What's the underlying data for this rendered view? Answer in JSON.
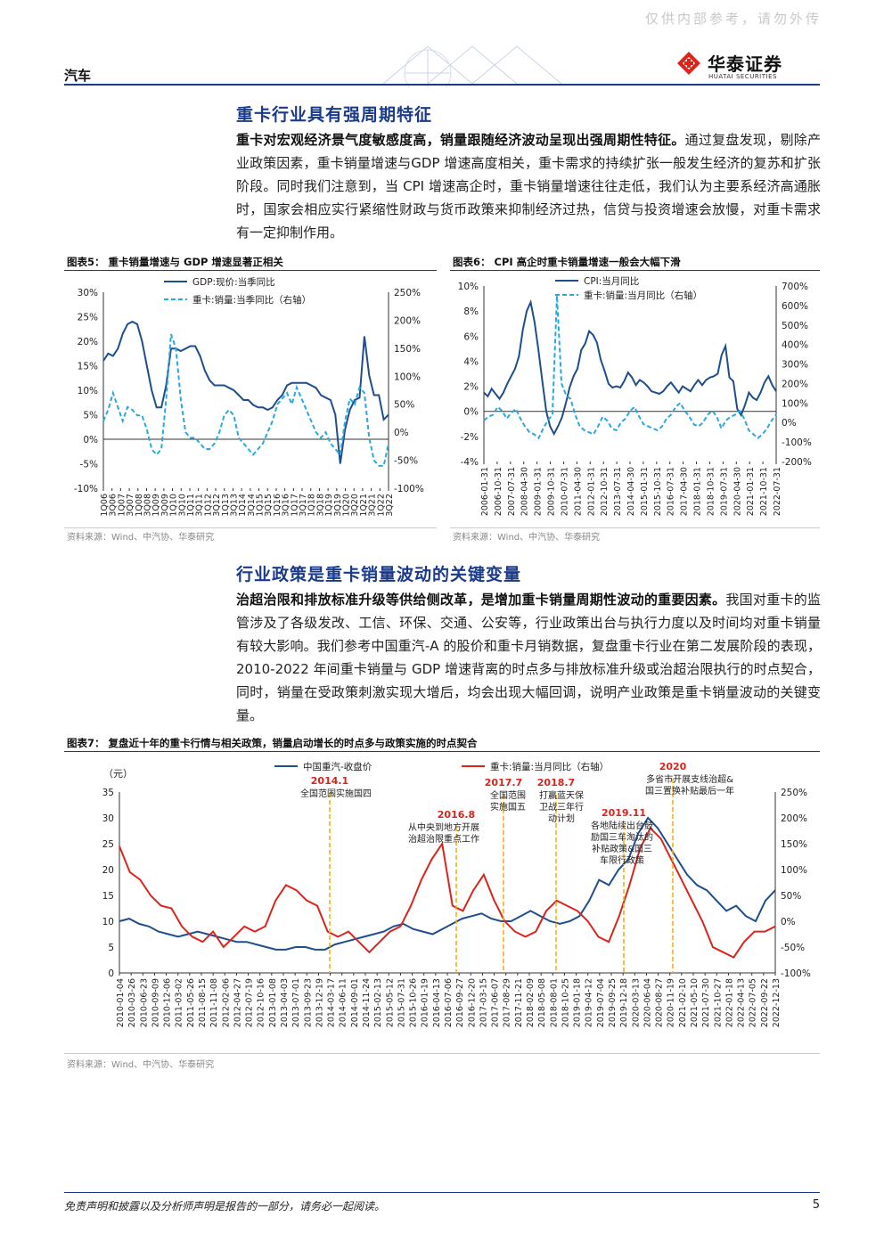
{
  "header": {
    "watermark": "仅供内部参考，请勿外传",
    "section_tag": "汽车",
    "logo_cn": "华泰证券",
    "logo_en": "HUATAI SECURITIES",
    "brand_color": "#d9251c",
    "accent_color": "#1a3a8a"
  },
  "section1": {
    "title": "重卡行业具有强周期特征",
    "lead": "重卡对宏观经济景气度敏感度高，销量跟随经济波动呈现出强周期性特征。",
    "body": "通过复盘发现，剔除产业政策因素，重卡销量增速与GDP 增速高度相关，重卡需求的持续扩张一般发生经济的复苏和扩张阶段。同时我们注意到，当 CPI 增速高企时，重卡销量增速往往走低，我们认为主要系经济高通胀时，国家会相应实行紧缩性财政与货币政策来抑制经济过热，信贷与投资增速会放慢，对重卡需求有一定抑制作用。"
  },
  "fig5": {
    "title": "图表5：  重卡销量增速与 GDP 增速显著正相关",
    "source": "资料来源：Wind、中汽协、华泰研究",
    "chart_data": {
      "type": "line",
      "legend": [
        "GDP:现价:当季同比",
        "重卡:销量:当季同比（右轴）"
      ],
      "y_left_ticks": [
        "30%",
        "25%",
        "20%",
        "15%",
        "10%",
        "5%",
        "0%",
        "-5%",
        "-10%"
      ],
      "y_right_ticks": [
        "250%",
        "200%",
        "150%",
        "100%",
        "50%",
        "0%",
        "-50%",
        "-100%"
      ],
      "x_ticks": [
        "1Q06",
        "3Q06",
        "1Q07",
        "3Q07",
        "1Q08",
        "3Q08",
        "1Q09",
        "3Q09",
        "1Q10",
        "3Q10",
        "1Q11",
        "3Q11",
        "1Q12",
        "3Q12",
        "1Q13",
        "3Q13",
        "1Q14",
        "3Q14",
        "1Q15",
        "3Q15",
        "1Q16",
        "3Q16",
        "1Q17",
        "3Q17",
        "1Q18",
        "3Q18",
        "1Q19",
        "3Q19",
        "1Q20",
        "3Q20",
        "1Q21",
        "3Q21",
        "1Q22",
        "3Q22"
      ],
      "gdp": [
        16,
        17.5,
        17,
        18.5,
        21.5,
        23.5,
        24,
        23.5,
        20,
        15,
        10,
        6.5,
        6.5,
        11,
        18.5,
        18.5,
        18,
        18.5,
        19,
        19,
        17,
        14,
        12,
        11,
        11,
        11,
        10.5,
        10,
        9,
        8,
        8,
        7,
        6.5,
        6.5,
        6,
        6.5,
        8,
        9,
        11,
        11.5,
        11.5,
        11.5,
        11.5,
        11,
        10.5,
        9,
        8.5,
        8,
        5,
        -5,
        2,
        6,
        8,
        8.5,
        21,
        13,
        9,
        9,
        4,
        5
      ],
      "truck": [
        20,
        40,
        70,
        45,
        20,
        45,
        40,
        30,
        30,
        5,
        -30,
        -40,
        -30,
        60,
        175,
        150,
        60,
        0,
        -10,
        -10,
        -20,
        -30,
        -30,
        -20,
        0,
        30,
        40,
        30,
        -10,
        -20,
        -30,
        -40,
        -30,
        -20,
        0,
        20,
        50,
        60,
        70,
        50,
        80,
        60,
        40,
        20,
        0,
        -10,
        0,
        -20,
        -30,
        -40,
        20,
        60,
        50,
        80,
        70,
        -10,
        -50,
        -60,
        -60,
        -20
      ]
    }
  },
  "fig6": {
    "title": "图表6：  CPI 高企时重卡销量增速一般会大幅下滑",
    "source": "资料来源：Wind、中汽协、华泰研究",
    "chart_data": {
      "type": "line",
      "legend": [
        "CPI:当月同比",
        "重卡:销量:当月同比（右轴）"
      ],
      "y_left_ticks": [
        "10%",
        "8%",
        "6%",
        "4%",
        "2%",
        "0%",
        "-2%",
        "-4%"
      ],
      "y_right_ticks": [
        "700%",
        "600%",
        "500%",
        "400%",
        "300%",
        "200%",
        "100%",
        "0%",
        "-100%",
        "-200%"
      ],
      "x_ticks": [
        "2006-01-31",
        "2006-10-31",
        "2007-07-31",
        "2008-04-30",
        "2009-01-31",
        "2009-10-31",
        "2010-07-31",
        "2011-04-30",
        "2012-01-31",
        "2012-10-31",
        "2013-07-31",
        "2014-04-30",
        "2015-01-31",
        "2015-10-31",
        "2016-07-31",
        "2017-04-30",
        "2018-01-31",
        "2018-10-31",
        "2019-07-31",
        "2020-04-30",
        "2021-01-31",
        "2021-10-31",
        "2022-07-31"
      ],
      "cpi": [
        1.5,
        1.2,
        1.8,
        1.4,
        1.0,
        1.5,
        2.2,
        2.8,
        3.4,
        4.4,
        6.5,
        8.0,
        8.7,
        7.1,
        4.9,
        2.4,
        0.0,
        -1.2,
        -1.8,
        -1.2,
        -0.5,
        0.6,
        1.9,
        2.8,
        3.4,
        4.9,
        5.4,
        6.4,
        6.1,
        5.5,
        4.1,
        3.2,
        2.2,
        1.9,
        2.0,
        1.9,
        2.4,
        3.1,
        2.7,
        2.1,
        2.5,
        2.3,
        2.0,
        1.6,
        1.5,
        1.4,
        1.6,
        2.0,
        2.3,
        1.9,
        1.5,
        2.0,
        1.8,
        1.6,
        2.1,
        2.5,
        2.1,
        2.5,
        2.7,
        2.8,
        3.0,
        4.5,
        5.2,
        2.7,
        2.4,
        0.2,
        -0.3,
        0.5,
        1.5,
        1.1,
        0.9,
        1.5,
        2.3,
        2.8,
        2.1,
        1.6
      ],
      "truck": [
        10,
        30,
        40,
        80,
        60,
        20,
        50,
        70,
        20,
        -20,
        -50,
        -60,
        -80,
        -30,
        10,
        40,
        650,
        200,
        140,
        120,
        40,
        -20,
        -40,
        -50,
        -60,
        -20,
        30,
        10,
        -30,
        -40,
        0,
        20,
        60,
        80,
        30,
        -10,
        -20,
        -30,
        -40,
        -20,
        20,
        40,
        80,
        100,
        60,
        30,
        -10,
        -20,
        0,
        40,
        60,
        30,
        -30,
        10,
        30,
        40,
        60,
        20,
        -40,
        -60,
        -80,
        -60,
        -30,
        10,
        40
      ]
    }
  },
  "section2": {
    "title": "行业政策是重卡销量波动的关键变量",
    "lead": "治超治限和排放标准升级等供给侧改革，是增加重卡销量周期性波动的重要因素。",
    "body": "我国对重卡的监管涉及了各级发改、工信、环保、交通、公安等，行业政策出台与执行力度以及时间均对重卡销量有较大影响。我们参考中国重汽-A 的股价和重卡月销数据，复盘重卡行业在第二发展阶段的表现，2010-2022 年间重卡销量与 GDP 增速背离的时点多与排放标准升级或治超治限执行的时点契合，同时，销量在受政策刺激实现大增后，均会出现大幅回调，说明产业政策是重卡销量波动的关键变量。"
  },
  "fig7": {
    "title": "图表7：  复盘近十年的重卡行情与相关政策，销量启动增长的时点多与政策实施的时点契合",
    "source": "资料来源：Wind、中汽协、华泰研究",
    "chart_data": {
      "type": "line",
      "unit_label": "（元）",
      "legend": [
        "中国重汽-收盘价",
        "重卡:销量:当月同比（右轴）"
      ],
      "y_left_ticks": [
        "35",
        "30",
        "25",
        "20",
        "15",
        "10",
        "5",
        "0"
      ],
      "y_right_ticks": [
        "250%",
        "200%",
        "150%",
        "100%",
        "50%",
        "0%",
        "-50%",
        "-100%"
      ],
      "x_ticks": [
        "2010-01-04",
        "2010-03-26",
        "2010-06-23",
        "2010-09-09",
        "2010-12-06",
        "2011-03-02",
        "2011-05-26",
        "2011-08-15",
        "2011-11-08",
        "2012-02-06",
        "2012-04-27",
        "2012-07-19",
        "2012-10-16",
        "2013-01-08",
        "2013-04-03",
        "2013-07-01",
        "2013-09-23",
        "2013-12-19",
        "2014-03-17",
        "2014-06-11",
        "2014-09-01",
        "2014-11-24",
        "2015-02-13",
        "2015-05-12",
        "2015-07-31",
        "2015-10-26",
        "2016-01-19",
        "2016-04-13",
        "2016-07-06",
        "2016-09-27",
        "2016-12-20",
        "2017-03-15",
        "2017-06-07",
        "2017-08-29",
        "2017-11-21",
        "2018-02-09",
        "2018-05-08",
        "2018-08-01",
        "2018-10-25",
        "2019-01-18",
        "2019-04-12",
        "2019-07-04",
        "2019-09-25",
        "2019-12-18",
        "2020-03-13",
        "2020-06-04",
        "2020-08-27",
        "2020-11-19",
        "2021-02-10",
        "2021-05-10",
        "2021-07-30",
        "2021-10-27",
        "2022-01-18",
        "2022-04-13",
        "2022-07-05",
        "2022-09-22",
        "2022-12-13"
      ],
      "price": [
        10,
        10.5,
        9.5,
        9,
        8,
        7.5,
        7,
        7.5,
        8,
        7.5,
        7,
        6.5,
        6,
        6,
        5.5,
        5,
        4.5,
        4.5,
        5,
        5,
        4.5,
        4.5,
        5.5,
        6,
        6.5,
        7,
        7.5,
        8,
        9,
        9.5,
        8.5,
        8,
        7.5,
        8.5,
        9.5,
        10.5,
        11,
        11.5,
        10.5,
        10,
        10,
        11,
        12,
        11,
        10,
        9.5,
        10,
        11,
        14,
        18,
        17,
        20,
        22,
        27,
        30,
        28,
        25,
        22,
        19,
        17,
        16,
        14,
        12,
        13,
        11,
        10,
        14,
        16
      ],
      "truck": [
        145,
        95,
        80,
        50,
        30,
        25,
        -10,
        -30,
        -40,
        -20,
        -50,
        -30,
        -10,
        -20,
        -10,
        40,
        70,
        60,
        40,
        30,
        -20,
        -30,
        -20,
        -40,
        -60,
        -40,
        -20,
        -10,
        30,
        80,
        120,
        150,
        30,
        20,
        60,
        90,
        40,
        0,
        -20,
        -30,
        -20,
        20,
        40,
        30,
        20,
        0,
        -30,
        -40,
        10,
        70,
        140,
        180,
        160,
        120,
        80,
        40,
        0,
        -50,
        -60,
        -70,
        -40,
        -20,
        -20,
        -10
      ],
      "annotations": [
        {
          "year": "2014.1",
          "text": "全国范围实施国四"
        },
        {
          "year": "2016.8",
          "text": "从中央到地方开展治超治限重点工作"
        },
        {
          "year": "2017.7",
          "text": "全国范围实施国五"
        },
        {
          "year": "2018.7",
          "text": "打赢蓝天保卫战三年行动计划"
        },
        {
          "year": "2019.11",
          "text": "各地陆续出台鼓励国三车淘汰的补贴政策&国三车限行政策"
        },
        {
          "year": "2020",
          "text": "多省市开展支线治超&国三置换补贴最后一年"
        }
      ]
    }
  },
  "footer": {
    "disclaimer": "免责声明和披露以及分析师声明是报告的一部分，请务必一起阅读。",
    "page": "5"
  }
}
